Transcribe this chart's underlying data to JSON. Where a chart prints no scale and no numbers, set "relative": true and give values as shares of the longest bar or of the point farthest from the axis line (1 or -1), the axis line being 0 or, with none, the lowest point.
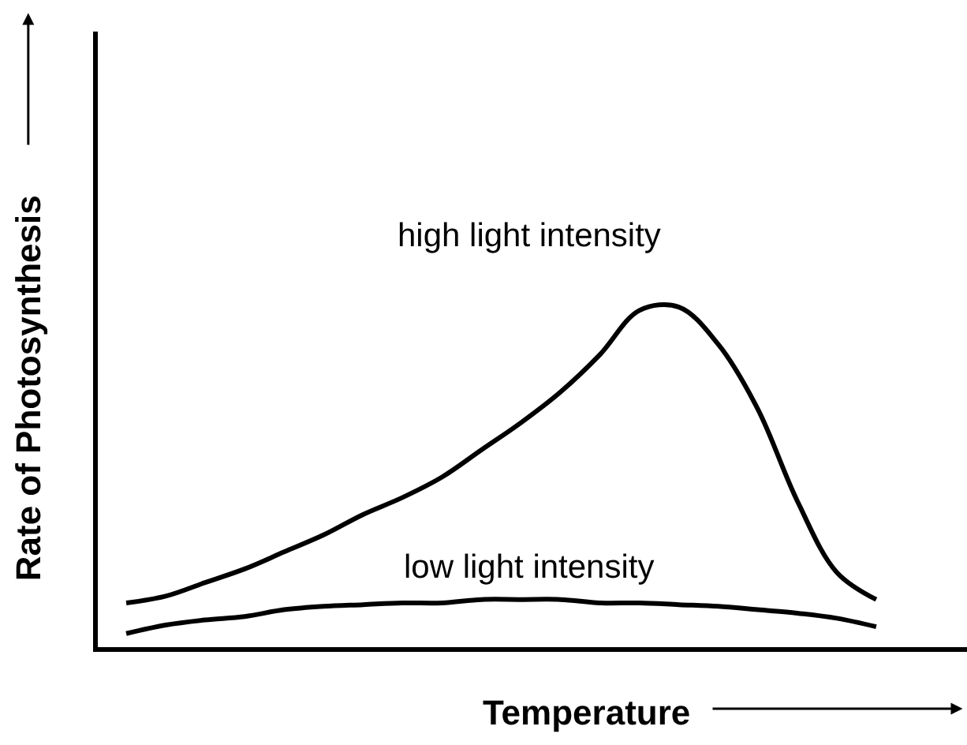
{
  "chart_data": {
    "type": "line",
    "relative": true,
    "xlabel": "Temperature",
    "ylabel": "Rate of Photosynthesis",
    "categories": [
      null,
      null,
      null,
      null,
      null,
      null,
      null,
      null,
      null,
      null,
      null,
      null,
      null,
      null,
      null,
      null,
      null,
      null,
      null,
      null
    ],
    "series": [
      {
        "name": "high light intensity",
        "color": "#000000",
        "values": [
          0.13,
          0.15,
          0.19,
          0.23,
          0.28,
          0.33,
          0.39,
          0.44,
          0.5,
          0.58,
          0.66,
          0.75,
          0.86,
          0.99,
          1.0,
          0.89,
          0.7,
          0.43,
          0.22,
          0.14
        ]
      },
      {
        "name": "low light intensity",
        "color": "#000000",
        "values": [
          0.04,
          0.065,
          0.08,
          0.09,
          0.11,
          0.12,
          0.125,
          0.13,
          0.13,
          0.14,
          0.14,
          0.14,
          0.13,
          0.13,
          0.125,
          0.12,
          0.11,
          0.1,
          0.085,
          0.06
        ]
      }
    ],
    "legend": false,
    "marker": "none",
    "line_style": "solid"
  }
}
